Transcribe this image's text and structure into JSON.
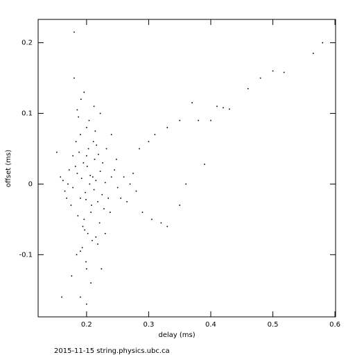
{
  "chart_data": {
    "type": "scatter",
    "xlabel": "delay (ms)",
    "ylabel": "offset (ms)",
    "footer": "2015-11-15 string.physics.ubc.ca",
    "color": "#000000",
    "xlim": [
      0.122,
      0.601
    ],
    "ylim": [
      -0.188,
      0.233
    ],
    "xticks": [
      0.2,
      0.3,
      0.4,
      0.5,
      0.6
    ],
    "yticks": [
      -0.1,
      0,
      0.1,
      0.2
    ],
    "x": [
      0.205,
      0.21,
      0.198,
      0.215,
      0.19,
      0.222,
      0.201,
      0.208,
      0.195,
      0.212,
      0.185,
      0.225,
      0.2,
      0.218,
      0.192,
      0.207,
      0.23,
      0.178,
      0.213,
      0.199,
      0.17,
      0.24,
      0.188,
      0.228,
      0.203,
      0.196,
      0.235,
      0.182,
      0.219,
      0.206,
      0.165,
      0.25,
      0.175,
      0.245,
      0.194,
      0.211,
      0.226,
      0.186,
      0.202,
      0.216,
      0.26,
      0.172,
      0.238,
      0.19,
      0.209,
      0.2,
      0.221,
      0.183,
      0.214,
      0.197,
      0.162,
      0.255,
      0.168,
      0.248,
      0.178,
      0.232,
      0.193,
      0.218,
      0.204,
      0.187,
      0.27,
      0.158,
      0.265,
      0.275,
      0.28,
      0.184,
      0.199,
      0.212,
      0.191,
      0.224,
      0.176,
      0.207,
      0.196,
      0.222,
      0.185,
      0.19,
      0.2,
      0.215,
      0.24,
      0.23,
      0.58,
      0.565,
      0.5,
      0.518,
      0.48,
      0.46,
      0.41,
      0.42,
      0.43,
      0.4,
      0.38,
      0.37,
      0.35,
      0.33,
      0.31,
      0.3,
      0.285,
      0.39,
      0.36,
      0.35,
      0.33,
      0.32,
      0.305,
      0.29,
      0.19,
      0.2,
      0.18,
      0.16,
      0.18,
      0.152
    ],
    "values": [
      0.0,
      0.01,
      -0.012,
      0.005,
      -0.02,
      0.018,
      0.025,
      -0.03,
      0.03,
      -0.008,
      0.015,
      -0.015,
      0.04,
      -0.025,
      0.008,
      -0.04,
      0.002,
      -0.005,
      0.035,
      -0.022,
      0.0,
      0.01,
      0.045,
      -0.035,
      0.05,
      -0.05,
      -0.02,
      0.025,
      0.042,
      0.012,
      -0.01,
      -0.005,
      -0.03,
      0.02,
      -0.06,
      0.06,
      0.03,
      -0.045,
      -0.07,
      0.055,
      0.01,
      0.02,
      -0.04,
      0.07,
      -0.08,
      0.08,
      -0.055,
      0.06,
      0.075,
      -0.065,
      0.005,
      -0.02,
      -0.02,
      0.035,
      0.04,
      0.05,
      -0.09,
      -0.085,
      0.09,
      0.095,
      0.0,
      0.01,
      -0.025,
      0.015,
      -0.01,
      -0.1,
      -0.11,
      0.11,
      0.12,
      -0.12,
      -0.13,
      -0.14,
      0.13,
      0.1,
      0.105,
      -0.095,
      -0.12,
      -0.075,
      0.07,
      -0.07,
      0.2,
      0.185,
      0.16,
      0.158,
      0.15,
      0.135,
      0.11,
      0.108,
      0.106,
      0.09,
      0.09,
      0.115,
      0.09,
      0.08,
      0.07,
      0.06,
      0.05,
      0.028,
      0.0,
      -0.03,
      -0.06,
      -0.055,
      -0.05,
      -0.04,
      -0.16,
      -0.17,
      0.215,
      -0.16,
      0.15,
      0.045
    ]
  }
}
